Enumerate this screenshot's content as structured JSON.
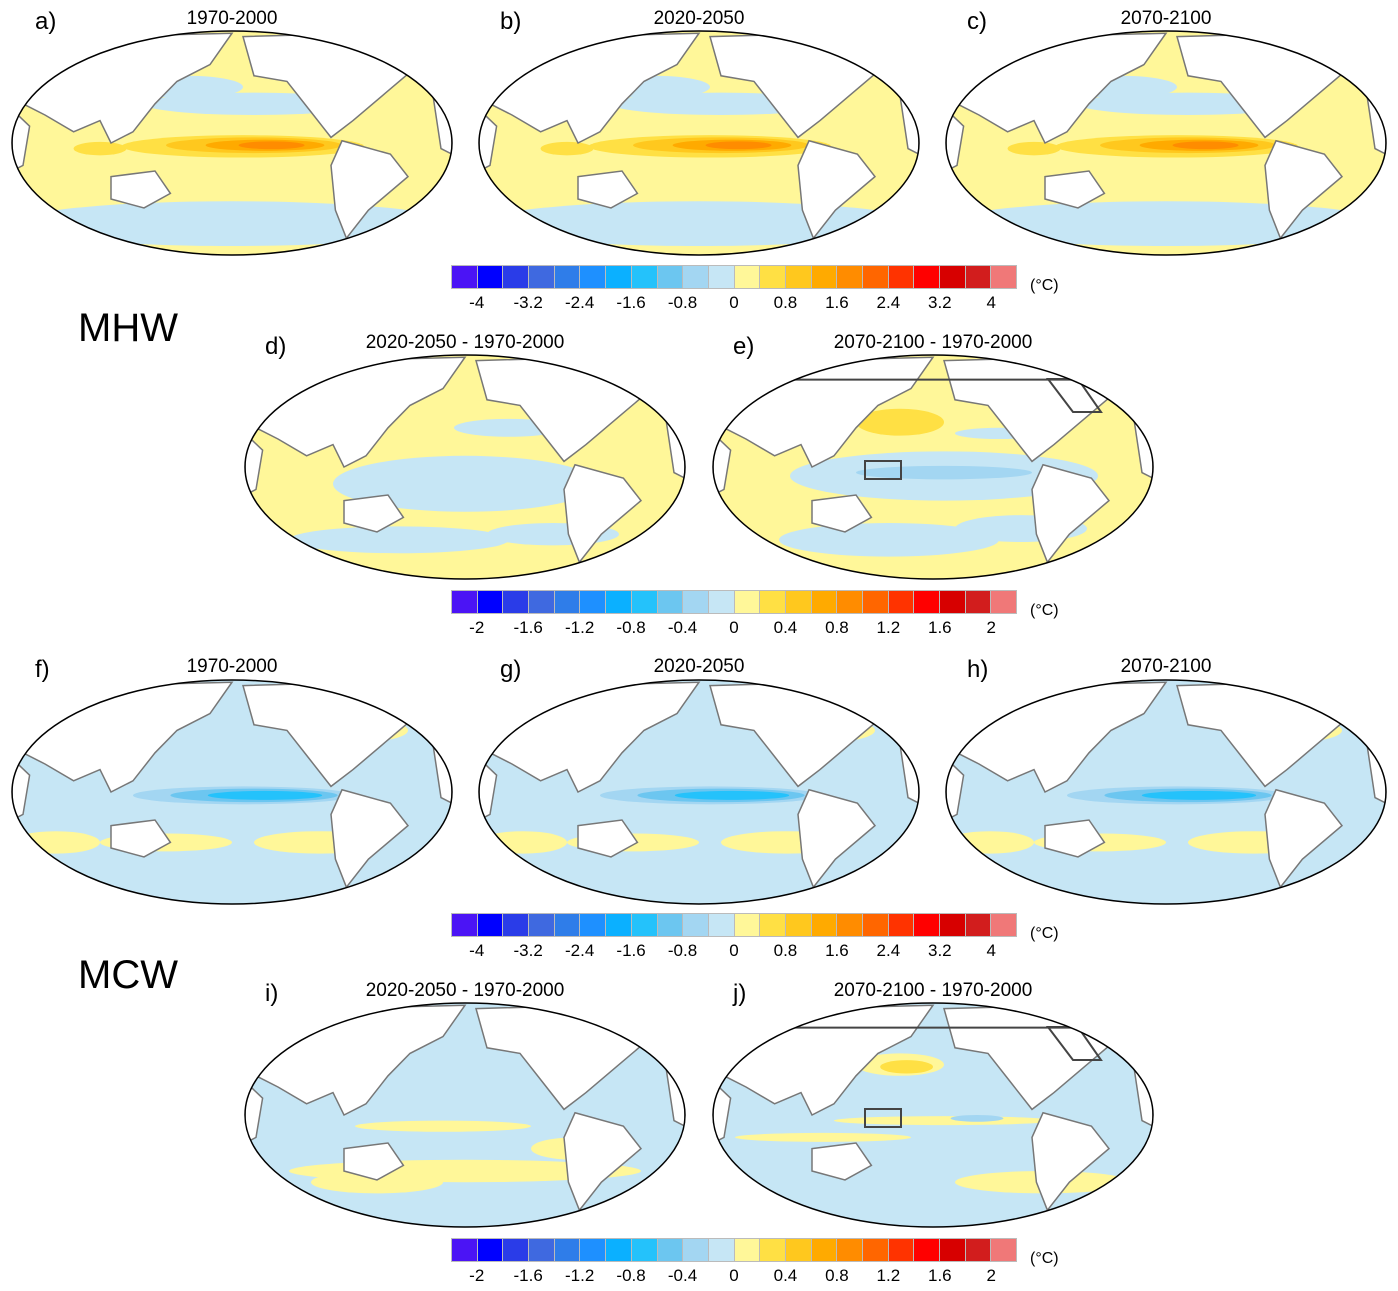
{
  "row_labels": {
    "mhw": "MHW",
    "mcw": "MCW"
  },
  "panels": [
    {
      "id": "a",
      "label": "a)",
      "title": "1970-2000"
    },
    {
      "id": "b",
      "label": "b)",
      "title": "2020-2050"
    },
    {
      "id": "c",
      "label": "c)",
      "title": "2070-2100"
    },
    {
      "id": "d",
      "label": "d)",
      "title": "2020-2050 - 1970-2000"
    },
    {
      "id": "e",
      "label": "e)",
      "title": "2070-2100 - 1970-2000"
    },
    {
      "id": "f",
      "label": "f)",
      "title": "1970-2000"
    },
    {
      "id": "g",
      "label": "g)",
      "title": "2020-2050"
    },
    {
      "id": "h",
      "label": "h)",
      "title": "2070-2100"
    },
    {
      "id": "i",
      "label": "i)",
      "title": "2020-2050 - 1970-2000"
    },
    {
      "id": "j",
      "label": "j)",
      "title": "2070-2100 - 1970-2000"
    }
  ],
  "colorbars": [
    {
      "ticks": [
        "-4",
        "-3.2",
        "-2.4",
        "-1.6",
        "-0.8",
        "0",
        "0.8",
        "1.6",
        "2.4",
        "3.2",
        "4"
      ],
      "unit": "(°C)"
    },
    {
      "ticks": [
        "-2",
        "-1.6",
        "-1.2",
        "-0.8",
        "-0.4",
        "0",
        "0.4",
        "0.8",
        "1.2",
        "1.6",
        "2"
      ],
      "unit": "(°C)"
    },
    {
      "ticks": [
        "-4",
        "-3.2",
        "-2.4",
        "-1.6",
        "-0.8",
        "0",
        "0.8",
        "1.6",
        "2.4",
        "3.2",
        "4"
      ],
      "unit": "(°C)"
    },
    {
      "ticks": [
        "-2",
        "-1.6",
        "-1.2",
        "-0.8",
        "-0.4",
        "0",
        "0.4",
        "0.8",
        "1.2",
        "1.6",
        "2"
      ],
      "unit": "(°C)"
    }
  ],
  "colors": [
    "#4b14f5",
    "#0000ff",
    "#2a3ce8",
    "#3f69e0",
    "#2f7de9",
    "#1e90ff",
    "#0bb0ff",
    "#24c2fb",
    "#6cc6f0",
    "#a3d6f2",
    "#c6e6f5",
    "#fff799",
    "#ffe044",
    "#ffc81e",
    "#ffaa00",
    "#ff8c00",
    "#ff6600",
    "#ff3300",
    "#ff0000",
    "#d70000",
    "#d21d1d",
    "#f07878"
  ]
}
